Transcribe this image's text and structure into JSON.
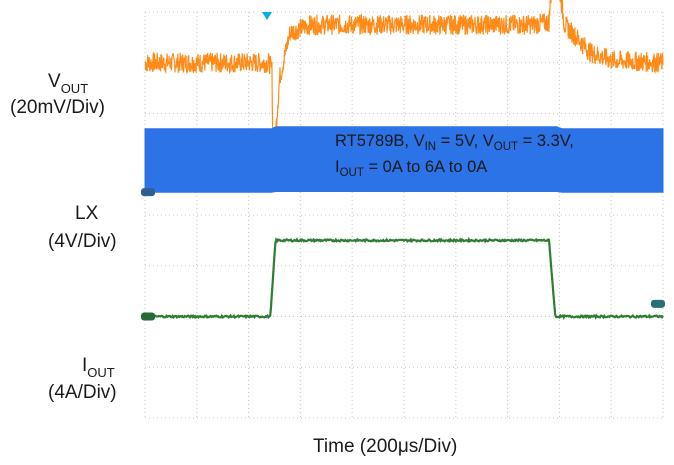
{
  "chart_data": {
    "type": "line",
    "title": "",
    "xlabel": "Time (200μs/Div)",
    "x_divisions": 10,
    "y_divisions": 8,
    "grid": true,
    "annotation": {
      "line1_parts": [
        "RT5789B, V",
        "IN",
        " = 5V, V",
        "OUT",
        " = 3.3V,"
      ],
      "line2_parts": [
        "I",
        "OUT",
        " = 0A to 6A to 0A"
      ]
    },
    "trigger_marker": "cyan-triangle-top",
    "series": [
      {
        "name": "VOUT",
        "label_main": "V",
        "label_sub": "OUT",
        "scale": "(20mV/Div)",
        "color": "#ff8c1a",
        "units_per_div": 20,
        "unit": "mV",
        "baseline_div": 3.0,
        "points": [
          [
            0.0,
            0
          ],
          [
            2.4,
            0
          ],
          [
            2.45,
            -3
          ],
          [
            2.48,
            -46
          ],
          [
            2.52,
            -28
          ],
          [
            2.6,
            -6
          ],
          [
            2.8,
            12
          ],
          [
            3.2,
            15
          ],
          [
            5.0,
            15
          ],
          [
            7.5,
            15
          ],
          [
            7.8,
            16
          ],
          [
            7.9,
            45
          ],
          [
            7.95,
            36
          ],
          [
            8.1,
            15
          ],
          [
            8.6,
            4
          ],
          [
            9.0,
            1
          ],
          [
            10.0,
            0
          ]
        ],
        "noise_mV": 8
      },
      {
        "name": "LX",
        "label_main": "LX",
        "label_sub": "",
        "scale": "(4V/Div)",
        "color": "#2b73e6",
        "units_per_div": 4,
        "unit": "V",
        "low_V": 0,
        "high_V": 5,
        "baseline_div": 0.45,
        "envelope": [
          [
            0.0,
            0,
            5
          ],
          [
            2.45,
            0,
            5
          ],
          [
            2.52,
            0.05,
            5.15
          ],
          [
            7.95,
            0.05,
            5.15
          ],
          [
            8.05,
            0,
            5
          ],
          [
            10.0,
            0,
            5
          ]
        ]
      },
      {
        "name": "IOUT",
        "label_main": "I",
        "label_sub": "OUT",
        "scale": "(4A/Div)",
        "color": "#2e7d32",
        "units_per_div": 4,
        "unit": "A",
        "baseline_div": -2.0,
        "points": [
          [
            0.0,
            0
          ],
          [
            2.42,
            0
          ],
          [
            2.52,
            6
          ],
          [
            7.8,
            6
          ],
          [
            7.92,
            0
          ],
          [
            10.0,
            0
          ]
        ]
      }
    ],
    "markers": [
      {
        "channel": "LX",
        "side": "left",
        "color": "#2f5f8f"
      },
      {
        "channel": "IOUT",
        "side": "left",
        "color": "#2a6a3a"
      },
      {
        "channel": "IOUT",
        "side": "right",
        "color": "#2a6e7a"
      }
    ]
  }
}
